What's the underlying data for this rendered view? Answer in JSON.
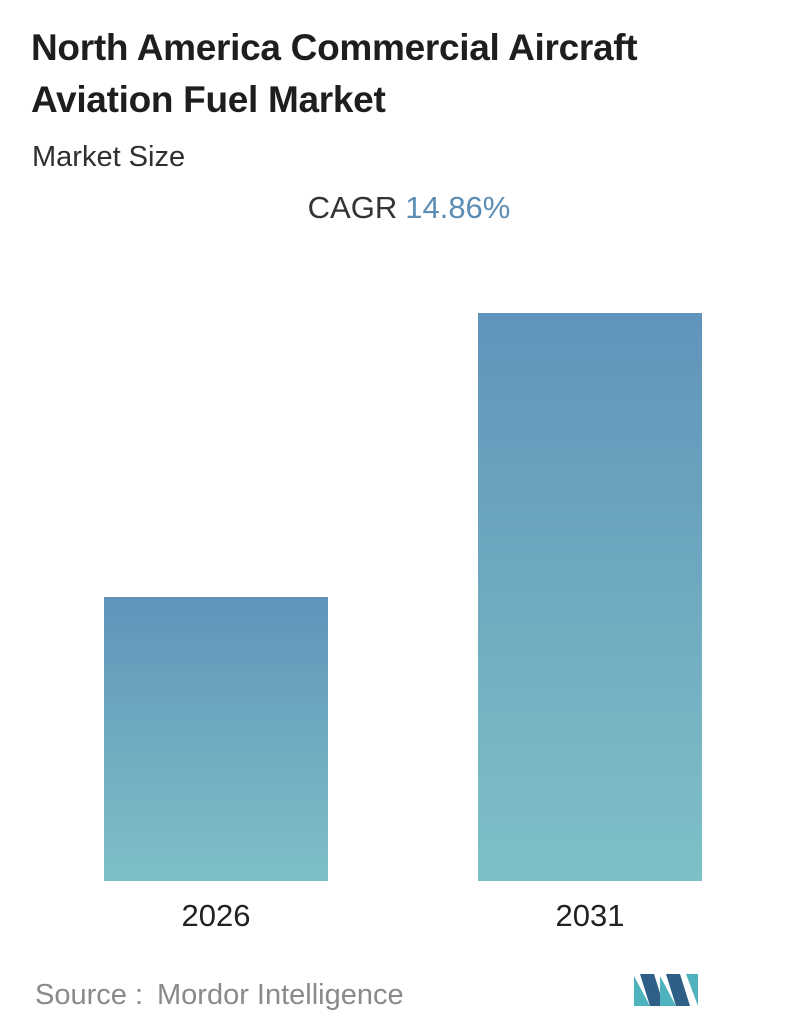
{
  "header": {
    "title": "North America Commercial Aircraft Aviation Fuel Market",
    "subtitle": "Market Size"
  },
  "cagr": {
    "label": "CAGR",
    "value": "14.86%"
  },
  "chart_data": {
    "type": "bar",
    "categories": [
      "2026",
      "2031"
    ],
    "values": [
      1.0,
      2.0
    ],
    "values_note_unit": "relative",
    "title": "North America Commercial Aircraft Aviation Fuel Market",
    "subtitle": "Market Size",
    "xlabel": "",
    "ylabel": "",
    "ylim": [
      0,
      2.0
    ],
    "grid": false,
    "legend": "none",
    "bar_gradient": [
      "#6094ba",
      "#7fc0c7"
    ]
  },
  "footer": {
    "source_label": "Source :",
    "source_value": "Mordor Intelligence"
  },
  "logo": {
    "icon": "mordor-intelligence-logo-icon",
    "colors": [
      "#2f5f86",
      "#4fb3bd"
    ]
  }
}
